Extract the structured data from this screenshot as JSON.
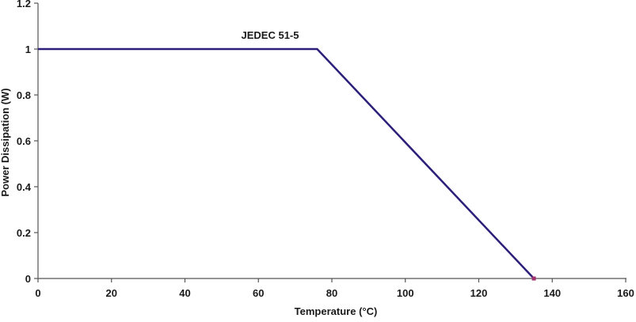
{
  "chart_data": {
    "type": "line",
    "title": "",
    "xlabel": "Temperature (°C)",
    "ylabel": "Power Dissipation (W)",
    "xlim": [
      0,
      160
    ],
    "ylim": [
      0,
      1.2
    ],
    "xticks": [
      0,
      20,
      40,
      60,
      80,
      100,
      120,
      140,
      160
    ],
    "yticks": [
      0,
      0.2,
      0.4,
      0.6,
      0.8,
      1,
      1.2
    ],
    "grid": false,
    "series": [
      {
        "name": "JEDEC 51-5",
        "x": [
          0,
          76,
          135
        ],
        "y": [
          1,
          1,
          0
        ],
        "color": "#2b1f7a",
        "end_marker_color": "#a0306e"
      }
    ],
    "annotations": [
      "JEDEC 51-5"
    ]
  }
}
